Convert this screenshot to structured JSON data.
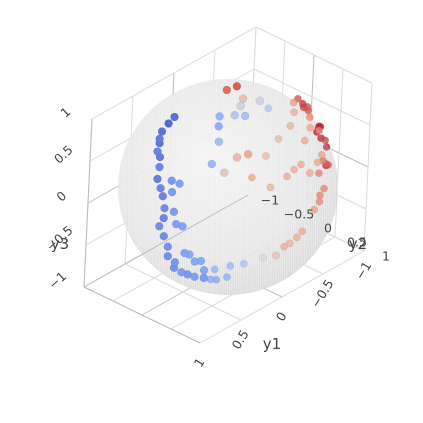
{
  "chart_data": {
    "type": "scatter3d",
    "title": "",
    "axes": {
      "y1": {
        "label": "y1",
        "range": [
          -1,
          1
        ],
        "ticks": [
          -1,
          -0.5,
          0,
          0.5,
          1
        ],
        "tick_labels": [
          "−1",
          "−0.5",
          "0",
          "0.5",
          "1"
        ]
      },
      "y2": {
        "label": "y2",
        "range": [
          -1,
          1
        ],
        "ticks": [
          -1,
          -0.5,
          0,
          0.5,
          1
        ],
        "tick_labels": [
          "−1",
          "−0.5",
          "0",
          "0.5",
          "1"
        ]
      },
      "y3": {
        "label": "y3",
        "range": [
          -1,
          1
        ],
        "ticks": [
          -1,
          -0.5,
          0,
          0.5,
          1
        ],
        "tick_labels": [
          "−1",
          "−0.5",
          "0",
          "0.5",
          "1"
        ]
      }
    },
    "surface": {
      "shape": "unit-sphere",
      "color": "#d9d9d9",
      "opacity": 0.55
    },
    "colorscale": [
      "#3b4cc0",
      "#8db0fe",
      "#dddddd",
      "#f49a7b",
      "#b40426"
    ],
    "grid": true,
    "points": [
      {
        "y1": 0.35,
        "y2": -0.58,
        "y3": 0.73,
        "c": -0.85
      },
      {
        "y1": 0.45,
        "y2": -0.55,
        "y3": 0.7,
        "c": -0.8
      },
      {
        "y1": 0.25,
        "y2": -0.62,
        "y3": 0.74,
        "c": -0.82
      },
      {
        "y1": 0.55,
        "y2": -0.45,
        "y3": 0.7,
        "c": -0.75
      },
      {
        "y1": 0.6,
        "y2": -0.38,
        "y3": 0.7,
        "c": -0.78
      },
      {
        "y1": 0.68,
        "y2": -0.3,
        "y3": 0.67,
        "c": -0.72
      },
      {
        "y1": 0.72,
        "y2": -0.2,
        "y3": 0.66,
        "c": -0.75
      },
      {
        "y1": 0.78,
        "y2": -0.12,
        "y3": 0.6,
        "c": -0.7
      },
      {
        "y1": 0.85,
        "y2": -0.05,
        "y3": 0.52,
        "c": -0.74
      },
      {
        "y1": 0.88,
        "y2": 0.05,
        "y3": 0.46,
        "c": -0.7
      },
      {
        "y1": 0.9,
        "y2": 0.12,
        "y3": 0.4,
        "c": -0.72
      },
      {
        "y1": 0.93,
        "y2": 0.2,
        "y3": 0.3,
        "c": -0.68
      },
      {
        "y1": 0.95,
        "y2": 0.22,
        "y3": 0.2,
        "c": -0.7
      },
      {
        "y1": 0.97,
        "y2": 0.18,
        "y3": 0.1,
        "c": -0.66
      },
      {
        "y1": 0.96,
        "y2": 0.25,
        "y3": 0.0,
        "c": -0.68
      },
      {
        "y1": 0.94,
        "y2": 0.3,
        "y3": -0.12,
        "c": -0.64
      },
      {
        "y1": 0.92,
        "y2": 0.28,
        "y3": -0.25,
        "c": -0.66
      },
      {
        "y1": 0.88,
        "y2": 0.35,
        "y3": -0.32,
        "c": -0.62
      },
      {
        "y1": 0.85,
        "y2": 0.3,
        "y3": -0.42,
        "c": -0.64
      },
      {
        "y1": 0.8,
        "y2": 0.36,
        "y3": -0.48,
        "c": -0.6
      },
      {
        "y1": 0.75,
        "y2": 0.4,
        "y3": -0.52,
        "c": -0.62
      },
      {
        "y1": 0.7,
        "y2": 0.45,
        "y3": -0.56,
        "c": -0.58
      },
      {
        "y1": 0.62,
        "y2": 0.5,
        "y3": -0.6,
        "c": -0.6
      },
      {
        "y1": 0.55,
        "y2": 0.52,
        "y3": -0.65,
        "c": -0.56
      },
      {
        "y1": 0.5,
        "y2": 0.55,
        "y3": -0.67,
        "c": -0.58
      },
      {
        "y1": 0.42,
        "y2": 0.62,
        "y3": -0.66,
        "c": -0.54
      },
      {
        "y1": 0.82,
        "y2": 0.15,
        "y3": 0.55,
        "c": -0.62
      },
      {
        "y1": 0.86,
        "y2": 0.22,
        "y3": 0.46,
        "c": -0.6
      },
      {
        "y1": 0.8,
        "y2": 0.26,
        "y3": 0.54,
        "c": -0.58
      },
      {
        "y1": 0.9,
        "y2": 0.32,
        "y3": 0.28,
        "c": -0.6
      },
      {
        "y1": 0.91,
        "y2": 0.38,
        "y3": 0.16,
        "c": -0.58
      },
      {
        "y1": 0.88,
        "y2": 0.45,
        "y3": 0.14,
        "c": -0.56
      },
      {
        "y1": 0.86,
        "y2": 0.48,
        "y3": -0.18,
        "c": -0.56
      },
      {
        "y1": 0.83,
        "y2": 0.52,
        "y3": -0.2,
        "c": -0.54
      },
      {
        "y1": 0.78,
        "y2": 0.55,
        "y3": -0.3,
        "c": -0.54
      },
      {
        "y1": 0.74,
        "y2": 0.6,
        "y3": -0.3,
        "c": -0.52
      },
      {
        "y1": 0.68,
        "y2": 0.58,
        "y3": -0.45,
        "c": -0.54
      },
      {
        "y1": 0.6,
        "y2": 0.65,
        "y3": -0.46,
        "c": -0.5
      },
      {
        "y1": 0.48,
        "y2": 0.75,
        "y3": -0.45,
        "c": -0.45
      },
      {
        "y1": 0.35,
        "y2": 0.8,
        "y3": -0.48,
        "c": -0.35
      },
      {
        "y1": 0.15,
        "y2": 0.85,
        "y3": -0.5,
        "c": -0.05
      },
      {
        "y1": -0.05,
        "y2": 0.8,
        "y3": -0.6,
        "c": 0.25
      },
      {
        "y1": -0.2,
        "y2": 0.82,
        "y3": -0.53,
        "c": 0.35
      },
      {
        "y1": -0.1,
        "y2": 0.86,
        "y3": -0.5,
        "c": 0.4
      },
      {
        "y1": -0.3,
        "y2": 0.8,
        "y3": -0.52,
        "c": 0.4
      },
      {
        "y1": 0.3,
        "y2": 0.2,
        "y3": 0.93,
        "c": -0.5
      },
      {
        "y1": 0.22,
        "y2": 0.1,
        "y3": 0.97,
        "c": -0.45
      },
      {
        "y1": 0.12,
        "y2": 0.22,
        "y3": 0.97,
        "c": -0.25
      },
      {
        "y1": 0.05,
        "y2": 0.3,
        "y3": 0.95,
        "c": -0.3
      },
      {
        "y1": 0.0,
        "y2": 0.15,
        "y3": 0.99,
        "c": -0.1
      },
      {
        "y1": -0.1,
        "y2": 0.05,
        "y3": 0.99,
        "c": 0.2
      },
      {
        "y1": -0.2,
        "y2": 0.2,
        "y3": 0.96,
        "c": -0.1
      },
      {
        "y1": -0.2,
        "y2": 0.35,
        "y3": 0.92,
        "c": -0.3
      },
      {
        "y1": 0.4,
        "y2": 0.35,
        "y3": 0.85,
        "c": -0.35
      },
      {
        "y1": 0.55,
        "y2": 0.45,
        "y3": 0.7,
        "c": -0.4
      },
      {
        "y1": 0.5,
        "y2": 0.6,
        "y3": 0.62,
        "c": 0.15
      },
      {
        "y1": 0.35,
        "y2": 0.6,
        "y3": 0.72,
        "c": 0.25
      },
      {
        "y1": 0.25,
        "y2": 0.65,
        "y3": 0.72,
        "c": 0.35
      },
      {
        "y1": 0.3,
        "y2": 0.8,
        "y3": 0.52,
        "c": 0.45
      },
      {
        "y1": 0.1,
        "y2": 0.75,
        "y3": 0.65,
        "c": 0.3
      },
      {
        "y1": -0.1,
        "y2": 0.68,
        "y3": 0.72,
        "c": 0.3
      },
      {
        "y1": -0.3,
        "y2": 0.6,
        "y3": 0.74,
        "c": 0.35
      },
      {
        "y1": -0.15,
        "y2": 0.9,
        "y3": 0.4,
        "c": 0.4
      },
      {
        "y1": -0.25,
        "y2": 0.88,
        "y3": 0.4,
        "c": 0.45
      },
      {
        "y1": -0.05,
        "y2": 0.92,
        "y3": 0.38,
        "c": 0.4
      },
      {
        "y1": 0.15,
        "y2": 0.92,
        "y3": 0.36,
        "c": 0.35
      },
      {
        "y1": -0.35,
        "y2": 0.9,
        "y3": 0.25,
        "c": 0.42
      },
      {
        "y1": -0.5,
        "y2": 0.82,
        "y3": 0.27,
        "c": 0.45
      },
      {
        "y1": -0.6,
        "y2": 0.75,
        "y3": 0.28,
        "c": 0.5
      },
      {
        "y1": -0.4,
        "y2": 0.72,
        "y3": 0.55,
        "c": 0.45
      },
      {
        "y1": -0.55,
        "y2": 0.6,
        "y3": 0.58,
        "c": 0.45
      },
      {
        "y1": -0.45,
        "y2": 0.45,
        "y3": 0.77,
        "c": 0.4
      },
      {
        "y1": -0.55,
        "y2": 0.3,
        "y3": 0.78,
        "c": 0.5
      },
      {
        "y1": -0.65,
        "y2": 0.45,
        "y3": 0.6,
        "c": 0.55
      },
      {
        "y1": -0.7,
        "y2": 0.55,
        "y3": 0.45,
        "c": 0.6
      },
      {
        "y1": -0.7,
        "y2": 0.35,
        "y3": 0.62,
        "c": 0.7
      },
      {
        "y1": -0.8,
        "y2": 0.2,
        "y3": 0.56,
        "c": 0.7
      },
      {
        "y1": -0.3,
        "y2": -0.5,
        "y3": 0.8,
        "c": 0.65
      },
      {
        "y1": -0.35,
        "y2": -0.4,
        "y3": 0.85,
        "c": 0.7
      },
      {
        "y1": -0.75,
        "y2": 0.1,
        "y3": 0.65,
        "c": 0.7
      },
      {
        "y1": -0.85,
        "y2": 0.05,
        "y3": 0.52,
        "c": 0.8
      },
      {
        "y1": -0.9,
        "y2": 0.0,
        "y3": 0.43,
        "c": 0.75
      },
      {
        "y1": -0.9,
        "y2": 0.3,
        "y3": 0.3,
        "c": 0.85
      },
      {
        "y1": -0.92,
        "y2": 0.25,
        "y3": 0.28,
        "c": 0.9
      },
      {
        "y1": -0.95,
        "y2": 0.2,
        "y3": 0.22,
        "c": 0.85
      },
      {
        "y1": -0.95,
        "y2": 0.25,
        "y3": 0.12,
        "c": 0.9
      },
      {
        "y1": -0.97,
        "y2": 0.15,
        "y3": 0.15,
        "c": 0.95
      },
      {
        "y1": -0.9,
        "y2": 0.42,
        "y3": 0.1,
        "c": 0.85
      },
      {
        "y1": -0.88,
        "y2": 0.45,
        "y3": -0.1,
        "c": 0.9
      },
      {
        "y1": -0.8,
        "y2": 0.6,
        "y3": 0.0,
        "c": 0.7
      },
      {
        "y1": -0.82,
        "y2": 0.5,
        "y3": 0.25,
        "c": 0.75
      },
      {
        "y1": -0.7,
        "y2": 0.7,
        "y3": 0.1,
        "c": 0.75
      },
      {
        "y1": -0.62,
        "y2": 0.75,
        "y3": 0.2,
        "c": 0.65
      },
      {
        "y1": -0.5,
        "y2": 0.85,
        "y3": 0.15,
        "c": 0.6
      },
      {
        "y1": -0.7,
        "y2": 0.68,
        "y3": -0.2,
        "c": 0.6
      },
      {
        "y1": -0.5,
        "y2": 0.8,
        "y3": -0.3,
        "c": 0.5
      },
      {
        "y1": -0.62,
        "y2": 0.72,
        "y3": -0.3,
        "c": 0.58
      },
      {
        "y1": -0.75,
        "y2": 0.55,
        "y3": -0.35,
        "c": 0.6
      },
      {
        "y1": -0.4,
        "y2": 0.75,
        "y3": -0.52,
        "c": 0.45
      }
    ]
  }
}
